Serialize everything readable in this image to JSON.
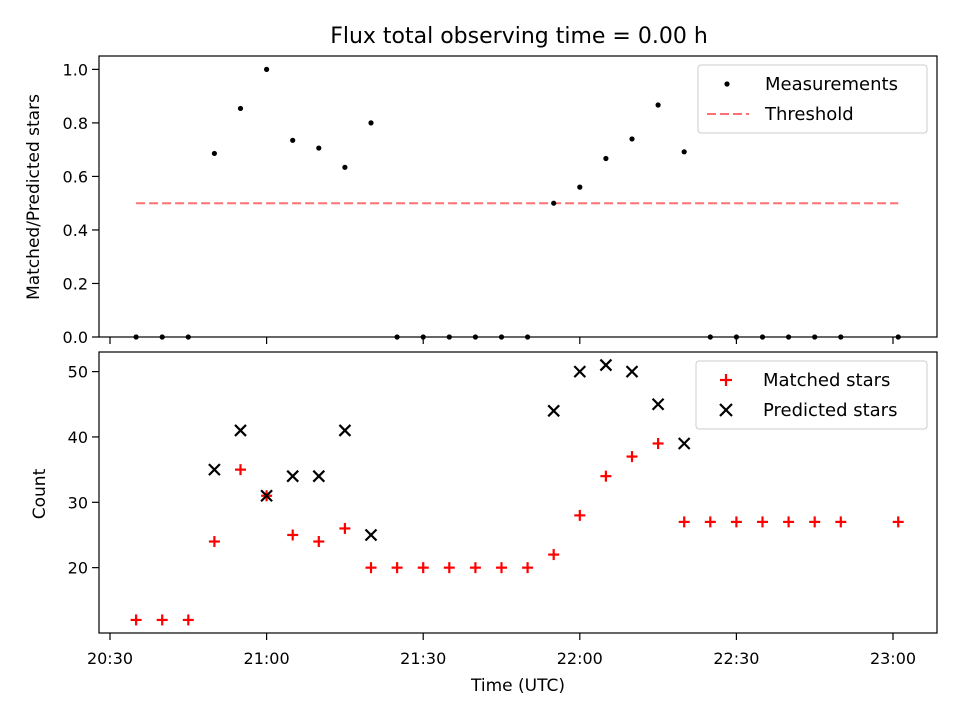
{
  "chart_data": [
    {
      "type": "scatter",
      "title": "Flux total observing time = 0.00 h",
      "xlabel": "",
      "ylabel": "Matched/Predicted stars",
      "ylim": [
        0,
        1.05
      ],
      "yticks": [
        "0.0",
        "0.2",
        "0.4",
        "0.6",
        "0.8",
        "1.0"
      ],
      "grid": false,
      "legend_position": "top-right",
      "series": [
        {
          "name": "Measurements",
          "marker": "dot",
          "color": "#000000",
          "points": [
            [
              "20:35",
              0
            ],
            [
              "20:40",
              0
            ],
            [
              "20:45",
              0
            ],
            [
              "20:50",
              0.686
            ],
            [
              "20:55",
              0.854
            ],
            [
              "21:00",
              1.0
            ],
            [
              "21:05",
              0.735
            ],
            [
              "21:10",
              0.706
            ],
            [
              "21:15",
              0.634
            ],
            [
              "21:20",
              0.8
            ],
            [
              "21:25",
              0
            ],
            [
              "21:30",
              0
            ],
            [
              "21:35",
              0
            ],
            [
              "21:40",
              0
            ],
            [
              "21:45",
              0
            ],
            [
              "21:50",
              0
            ],
            [
              "21:55",
              0.5
            ],
            [
              "22:00",
              0.56
            ],
            [
              "22:05",
              0.667
            ],
            [
              "22:10",
              0.74
            ],
            [
              "22:15",
              0.867
            ],
            [
              "22:20",
              0.692
            ],
            [
              "22:25",
              0
            ],
            [
              "22:30",
              0
            ],
            [
              "22:35",
              0
            ],
            [
              "22:40",
              0
            ],
            [
              "22:45",
              0
            ],
            [
              "22:50",
              0
            ],
            [
              "23:01",
              0
            ]
          ]
        },
        {
          "name": "Threshold",
          "line": "dashed",
          "color": "#ff7070",
          "points": [
            [
              "20:35",
              0.5
            ],
            [
              "23:01",
              0.5
            ]
          ]
        }
      ]
    },
    {
      "type": "scatter",
      "title": "",
      "xlabel": "Time (UTC)",
      "ylabel": "Count",
      "ylim": [
        10,
        53
      ],
      "yticks": [
        "20",
        "30",
        "40",
        "50"
      ],
      "xticks": [
        "20:30",
        "21:00",
        "21:30",
        "22:00",
        "22:30",
        "23:00"
      ],
      "grid": false,
      "legend_position": "top-right",
      "series": [
        {
          "name": "Matched stars",
          "marker": "plus",
          "color": "#ff0000",
          "points": [
            [
              "20:35",
              12
            ],
            [
              "20:40",
              12
            ],
            [
              "20:45",
              12
            ],
            [
              "20:50",
              24
            ],
            [
              "20:55",
              35
            ],
            [
              "21:00",
              31
            ],
            [
              "21:05",
              25
            ],
            [
              "21:10",
              24
            ],
            [
              "21:15",
              26
            ],
            [
              "21:20",
              20
            ],
            [
              "21:25",
              20
            ],
            [
              "21:30",
              20
            ],
            [
              "21:35",
              20
            ],
            [
              "21:40",
              20
            ],
            [
              "21:45",
              20
            ],
            [
              "21:50",
              20
            ],
            [
              "21:55",
              22
            ],
            [
              "22:00",
              28
            ],
            [
              "22:05",
              34
            ],
            [
              "22:10",
              37
            ],
            [
              "22:15",
              39
            ],
            [
              "22:20",
              27
            ],
            [
              "22:25",
              27
            ],
            [
              "22:30",
              27
            ],
            [
              "22:35",
              27
            ],
            [
              "22:40",
              27
            ],
            [
              "22:45",
              27
            ],
            [
              "22:50",
              27
            ],
            [
              "23:01",
              27
            ]
          ]
        },
        {
          "name": "Predicted stars",
          "marker": "x",
          "color": "#000000",
          "points": [
            [
              "20:50",
              35
            ],
            [
              "20:55",
              41
            ],
            [
              "21:00",
              31
            ],
            [
              "21:05",
              34
            ],
            [
              "21:10",
              34
            ],
            [
              "21:15",
              41
            ],
            [
              "21:20",
              25
            ],
            [
              "21:55",
              44
            ],
            [
              "22:00",
              50
            ],
            [
              "22:05",
              51
            ],
            [
              "22:10",
              50
            ],
            [
              "22:15",
              45
            ],
            [
              "22:20",
              39
            ]
          ]
        }
      ]
    }
  ]
}
